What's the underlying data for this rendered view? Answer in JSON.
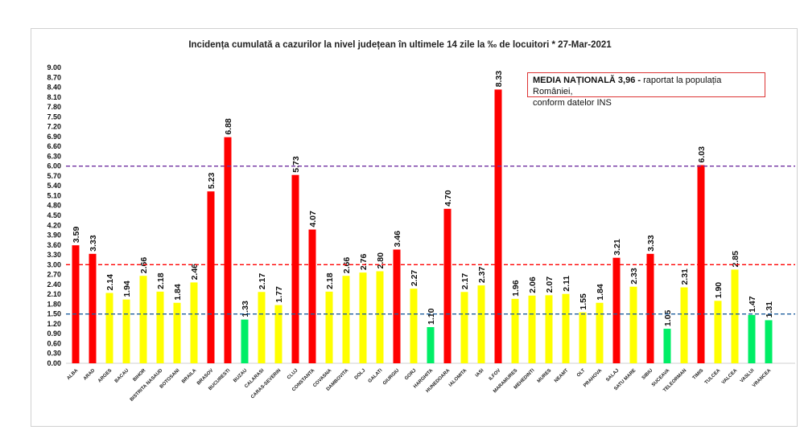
{
  "chart_data": {
    "type": "bar",
    "title": "Incidența cumulată a cazurilor la nivel județean în ultimele 14 zile la ‰ de locuitori * 27-Mar-2021",
    "categories": [
      "ALBA",
      "ARAD",
      "ARGES",
      "BACAU",
      "BIHOR",
      "BISTRITA NASAUD",
      "BOTOSANI",
      "BRAILA",
      "BRASOV",
      "BUCURESTI",
      "BUZAU",
      "CALARASI",
      "CARAS-SEVERIN",
      "CLUJ",
      "CONSTANTA",
      "COVASNA",
      "DAMBOVITA",
      "DOLJ",
      "GALATI",
      "GIURGIU",
      "GORJ",
      "HARGHITA",
      "HUNEDOARA",
      "IALOMITA",
      "IASI",
      "ILFOV",
      "MARAMURES",
      "MEHEDINTI",
      "MURES",
      "NEAMT",
      "OLT",
      "PRAHOVA",
      "SALAJ",
      "SATU MARE",
      "SIBIU",
      "SUCEAVA",
      "TELEORMAN",
      "TIMIS",
      "TULCEA",
      "VALCEA",
      "VASLUI",
      "VRANCEA"
    ],
    "values": [
      3.59,
      3.33,
      2.14,
      1.94,
      2.66,
      2.18,
      1.84,
      2.46,
      5.23,
      6.88,
      1.33,
      2.17,
      1.77,
      5.73,
      4.07,
      2.18,
      2.66,
      2.76,
      2.8,
      3.46,
      2.27,
      1.1,
      4.7,
      2.17,
      2.37,
      8.33,
      1.96,
      2.06,
      2.07,
      2.11,
      1.55,
      1.84,
      3.21,
      2.33,
      3.33,
      1.05,
      2.31,
      6.03,
      1.9,
      2.85,
      1.47,
      1.31
    ],
    "ylim": [
      0,
      9
    ],
    "ytick_step": 0.3,
    "grid": false,
    "reference_lines": [
      {
        "value": 6.0,
        "color": "#7030a0",
        "style": "dashed"
      },
      {
        "value": 3.0,
        "color": "#ff0000",
        "style": "dashed"
      },
      {
        "value": 1.5,
        "color": "#1f5f9f",
        "style": "dashed"
      }
    ],
    "colors": {
      "high": "#ff0000",
      "medium": "#ffff00",
      "low": "#00ee66"
    },
    "annotation": {
      "bold": "MEDIA NAȚIONALĂ  3,96 -",
      "rest": " raportat la populația României,",
      "line2": "conform datelor INS"
    }
  }
}
